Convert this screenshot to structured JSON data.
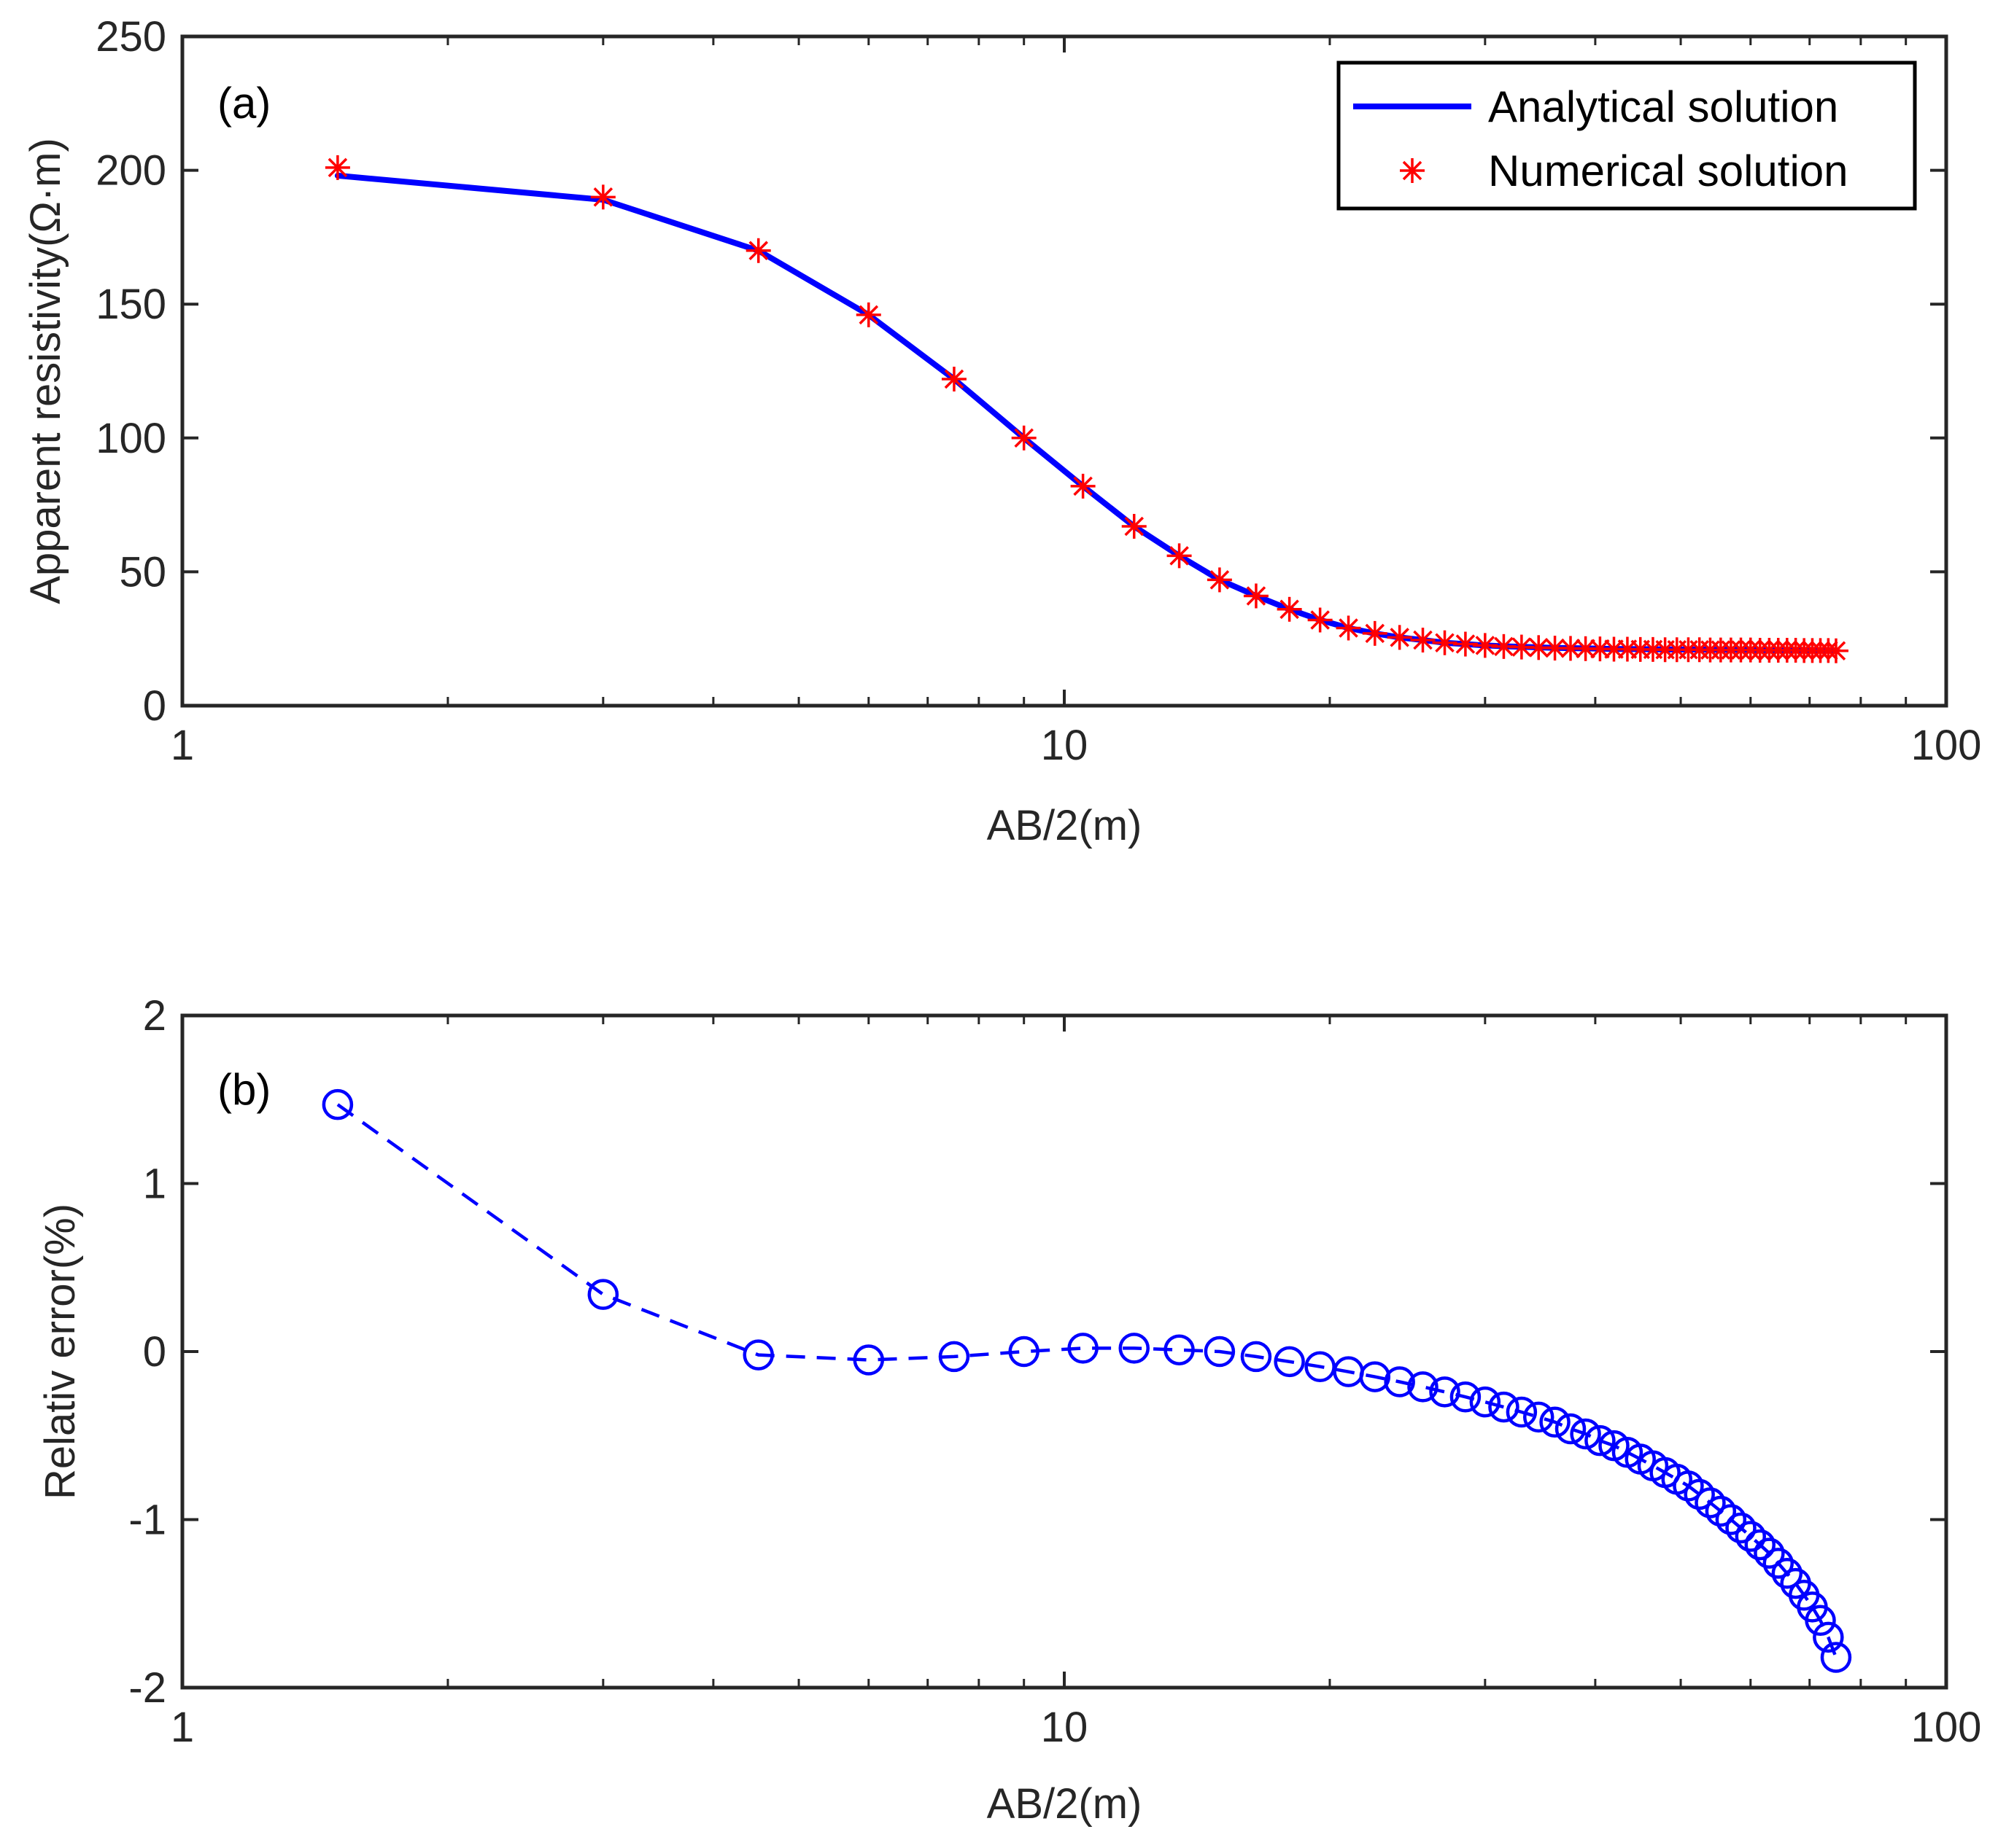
{
  "chart_data": [
    {
      "type": "line",
      "panel_label": "(a)",
      "xscale": "log",
      "xlim": [
        1,
        100
      ],
      "ylim": [
        0,
        250
      ],
      "xticks": [
        "1",
        "10",
        "100"
      ],
      "yticks": [
        "0",
        "50",
        "100",
        "150",
        "200",
        "250"
      ],
      "xlabel": "AB/2(m)",
      "ylabel": "Apparent resistivity(Ω·m)",
      "legend": {
        "placement": "top-right",
        "entries": [
          "Analytical solution",
          "Numerical solution"
        ]
      },
      "series": [
        {
          "name": "Analytical solution",
          "style": "solid-line",
          "color": "#0000ff",
          "x": [
            1.5,
            3,
            4.5,
            6,
            7.5,
            9,
            10.5,
            12,
            13.5,
            15,
            16.5,
            18,
            19.5,
            21,
            22.5,
            24,
            25.5,
            27,
            28.5,
            30,
            31.5,
            33,
            34.5,
            36,
            37.5,
            39,
            40.5,
            42,
            43.5,
            45,
            46.5,
            48,
            49.5,
            51,
            52.5,
            54,
            55.5,
            57,
            58.5,
            60,
            61.5,
            63,
            64.5,
            66,
            67.5,
            69,
            70.5,
            72,
            73.5,
            75
          ],
          "y": [
            198,
            189,
            170,
            146,
            122,
            100,
            82,
            67,
            56,
            47,
            41,
            36,
            32,
            29,
            27,
            25.5,
            24.5,
            23.5,
            23,
            22.5,
            22.2,
            22,
            21.8,
            21.6,
            21.5,
            21.4,
            21.3,
            21.2,
            21.2,
            21.1,
            21.1,
            21,
            21,
            21,
            21,
            20.9,
            20.9,
            20.9,
            20.9,
            20.9,
            20.8,
            20.8,
            20.8,
            20.8,
            20.8,
            20.8,
            20.8,
            20.7,
            20.7,
            20.7
          ]
        },
        {
          "name": "Numerical solution",
          "style": "asterisk-markers",
          "color": "#ff0000",
          "x": [
            1.5,
            3,
            4.5,
            6,
            7.5,
            9,
            10.5,
            12,
            13.5,
            15,
            16.5,
            18,
            19.5,
            21,
            22.5,
            24,
            25.5,
            27,
            28.5,
            30,
            31.5,
            33,
            34.5,
            36,
            37.5,
            39,
            40.5,
            42,
            43.5,
            45,
            46.5,
            48,
            49.5,
            51,
            52.5,
            54,
            55.5,
            57,
            58.5,
            60,
            61.5,
            63,
            64.5,
            66,
            67.5,
            69,
            70.5,
            72,
            73.5,
            75
          ],
          "y": [
            201,
            190,
            170,
            146,
            122,
            100,
            82,
            67,
            56,
            47,
            41,
            36,
            32,
            29,
            27,
            25.5,
            24.5,
            23.5,
            23,
            22.5,
            22.1,
            21.9,
            21.7,
            21.5,
            21.4,
            21.3,
            21.2,
            21.1,
            21.1,
            21,
            21,
            20.9,
            20.9,
            20.9,
            20.9,
            20.8,
            20.8,
            20.8,
            20.8,
            20.8,
            20.7,
            20.7,
            20.7,
            20.7,
            20.7,
            20.6,
            20.6,
            20.6,
            20.6,
            20.5
          ]
        }
      ]
    },
    {
      "type": "line",
      "panel_label": "(b)",
      "xscale": "log",
      "xlim": [
        1,
        100
      ],
      "ylim": [
        -2,
        2
      ],
      "xticks": [
        "1",
        "10",
        "100"
      ],
      "yticks": [
        "-2",
        "-1",
        "0",
        "1",
        "2"
      ],
      "xlabel": "AB/2(m)",
      "ylabel": "Relativ error(%)",
      "series": [
        {
          "name": "Relative error",
          "style": "dashed-line-circle-markers",
          "color": "#0000ff",
          "x": [
            1.5,
            3,
            4.5,
            6,
            7.5,
            9,
            10.5,
            12,
            13.5,
            15,
            16.5,
            18,
            19.5,
            21,
            22.5,
            24,
            25.5,
            27,
            28.5,
            30,
            31.5,
            33,
            34.5,
            36,
            37.5,
            39,
            40.5,
            42,
            43.5,
            45,
            46.5,
            48,
            49.5,
            51,
            52.5,
            54,
            55.5,
            57,
            58.5,
            60,
            61.5,
            63,
            64.5,
            66,
            67.5,
            69,
            70.5,
            72,
            73.5,
            75
          ],
          "y": [
            1.47,
            0.34,
            -0.02,
            -0.05,
            -0.03,
            0.0,
            0.02,
            0.02,
            0.01,
            0.0,
            -0.03,
            -0.06,
            -0.09,
            -0.12,
            -0.15,
            -0.18,
            -0.21,
            -0.24,
            -0.27,
            -0.3,
            -0.33,
            -0.36,
            -0.39,
            -0.42,
            -0.46,
            -0.49,
            -0.53,
            -0.56,
            -0.6,
            -0.64,
            -0.68,
            -0.72,
            -0.76,
            -0.8,
            -0.85,
            -0.9,
            -0.95,
            -1.0,
            -1.05,
            -1.1,
            -1.15,
            -1.2,
            -1.26,
            -1.32,
            -1.38,
            -1.45,
            -1.52,
            -1.6,
            -1.7,
            -1.82
          ]
        }
      ]
    }
  ]
}
